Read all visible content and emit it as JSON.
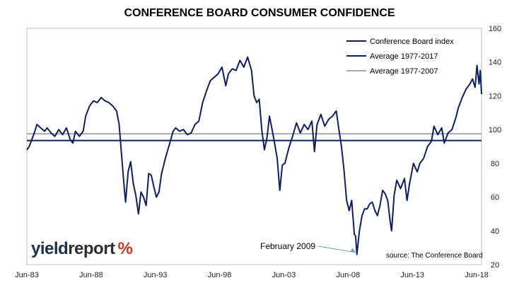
{
  "chart_data": {
    "type": "line",
    "title": "CONFERENCE BOARD CONSUMER CONFIDENCE",
    "xlabel": "",
    "ylabel": "",
    "x_ticks": [
      "Jun-83",
      "Jun-88",
      "Jun-93",
      "Jun-98",
      "Jun-03",
      "Jun-08",
      "Jun-13",
      "Jun-18"
    ],
    "x_range": [
      1983.42,
      2018.8
    ],
    "ylim": [
      20,
      160
    ],
    "y_ticks": [
      20,
      40,
      60,
      80,
      100,
      120,
      140,
      160
    ],
    "grid": false,
    "legend_position": "top-right",
    "series": [
      {
        "name": "Conference Board index",
        "color": "#0d1f5c",
        "points": [
          [
            1983.42,
            88
          ],
          [
            1983.6,
            90
          ],
          [
            1983.8,
            94
          ],
          [
            1984.0,
            98
          ],
          [
            1984.2,
            103
          ],
          [
            1984.5,
            101
          ],
          [
            1984.8,
            99
          ],
          [
            1985.0,
            101
          ],
          [
            1985.3,
            98
          ],
          [
            1985.6,
            96
          ],
          [
            1985.9,
            100
          ],
          [
            1986.2,
            97
          ],
          [
            1986.5,
            101
          ],
          [
            1986.8,
            94
          ],
          [
            1987.0,
            92
          ],
          [
            1987.2,
            99
          ],
          [
            1987.5,
            96
          ],
          [
            1987.8,
            99
          ],
          [
            1988.0,
            108
          ],
          [
            1988.3,
            114
          ],
          [
            1988.6,
            117
          ],
          [
            1988.9,
            116
          ],
          [
            1989.2,
            119
          ],
          [
            1989.5,
            117
          ],
          [
            1989.8,
            116
          ],
          [
            1990.1,
            114
          ],
          [
            1990.4,
            111
          ],
          [
            1990.6,
            103
          ],
          [
            1990.8,
            84
          ],
          [
            1991.0,
            65
          ],
          [
            1991.1,
            57
          ],
          [
            1991.3,
            75
          ],
          [
            1991.5,
            81
          ],
          [
            1991.7,
            68
          ],
          [
            1991.9,
            61
          ],
          [
            1992.1,
            50
          ],
          [
            1992.3,
            63
          ],
          [
            1992.5,
            60
          ],
          [
            1992.7,
            55
          ],
          [
            1992.9,
            74
          ],
          [
            1993.1,
            73
          ],
          [
            1993.3,
            66
          ],
          [
            1993.5,
            60
          ],
          [
            1993.7,
            63
          ],
          [
            1993.9,
            74
          ],
          [
            1994.2,
            83
          ],
          [
            1994.5,
            91
          ],
          [
            1994.8,
            99
          ],
          [
            1995.0,
            101
          ],
          [
            1995.3,
            99
          ],
          [
            1995.6,
            100
          ],
          [
            1995.9,
            97
          ],
          [
            1996.2,
            98
          ],
          [
            1996.5,
            103
          ],
          [
            1996.8,
            105
          ],
          [
            1997.1,
            116
          ],
          [
            1997.4,
            123
          ],
          [
            1997.7,
            129
          ],
          [
            1998.0,
            131
          ],
          [
            1998.3,
            133
          ],
          [
            1998.6,
            137
          ],
          [
            1998.9,
            126
          ],
          [
            1999.1,
            133
          ],
          [
            1999.4,
            136
          ],
          [
            1999.7,
            135
          ],
          [
            2000.0,
            141
          ],
          [
            2000.3,
            137
          ],
          [
            2000.6,
            143
          ],
          [
            2000.9,
            135
          ],
          [
            2001.1,
            120
          ],
          [
            2001.3,
            116
          ],
          [
            2001.5,
            118
          ],
          [
            2001.7,
            100
          ],
          [
            2001.9,
            88
          ],
          [
            2002.1,
            95
          ],
          [
            2002.3,
            108
          ],
          [
            2002.6,
            96
          ],
          [
            2002.9,
            83
          ],
          [
            2003.1,
            64
          ],
          [
            2003.3,
            79
          ],
          [
            2003.5,
            80
          ],
          [
            2003.8,
            89
          ],
          [
            2004.1,
            96
          ],
          [
            2004.4,
            104
          ],
          [
            2004.7,
            98
          ],
          [
            2005.0,
            103
          ],
          [
            2005.3,
            100
          ],
          [
            2005.6,
            105
          ],
          [
            2005.8,
            87
          ],
          [
            2006.0,
            103
          ],
          [
            2006.3,
            109
          ],
          [
            2006.6,
            102
          ],
          [
            2006.9,
            106
          ],
          [
            2007.2,
            108
          ],
          [
            2007.5,
            111
          ],
          [
            2007.7,
            100
          ],
          [
            2007.9,
            90
          ],
          [
            2008.1,
            76
          ],
          [
            2008.3,
            58
          ],
          [
            2008.5,
            52
          ],
          [
            2008.7,
            58
          ],
          [
            2008.9,
            38
          ],
          [
            2009.0,
            37
          ],
          [
            2009.1,
            26
          ],
          [
            2009.3,
            40
          ],
          [
            2009.5,
            49
          ],
          [
            2009.7,
            53
          ],
          [
            2009.9,
            53
          ],
          [
            2010.1,
            56
          ],
          [
            2010.3,
            57
          ],
          [
            2010.5,
            52
          ],
          [
            2010.7,
            49
          ],
          [
            2010.9,
            55
          ],
          [
            2011.1,
            64
          ],
          [
            2011.3,
            62
          ],
          [
            2011.5,
            58
          ],
          [
            2011.7,
            45
          ],
          [
            2011.8,
            40
          ],
          [
            2012.0,
            61
          ],
          [
            2012.2,
            70
          ],
          [
            2012.5,
            65
          ],
          [
            2012.8,
            71
          ],
          [
            2013.0,
            58
          ],
          [
            2013.2,
            68
          ],
          [
            2013.5,
            80
          ],
          [
            2013.8,
            75
          ],
          [
            2014.0,
            80
          ],
          [
            2014.3,
            83
          ],
          [
            2014.6,
            90
          ],
          [
            2014.9,
            93
          ],
          [
            2015.1,
            102
          ],
          [
            2015.4,
            97
          ],
          [
            2015.7,
            101
          ],
          [
            2015.9,
            92
          ],
          [
            2016.2,
            98
          ],
          [
            2016.5,
            100
          ],
          [
            2016.8,
            107
          ],
          [
            2017.0,
            113
          ],
          [
            2017.3,
            119
          ],
          [
            2017.6,
            124
          ],
          [
            2017.9,
            127
          ],
          [
            2018.1,
            130
          ],
          [
            2018.3,
            125
          ],
          [
            2018.45,
            138
          ],
          [
            2018.6,
            127
          ],
          [
            2018.7,
            135
          ],
          [
            2018.8,
            121
          ]
        ]
      },
      {
        "name": "Average 1977-2017",
        "color": "#0d1f5c",
        "value": 93.5
      },
      {
        "name": "Average 1977-2007",
        "color": "#aaaaaa",
        "value": 97.5
      }
    ],
    "annotation": {
      "text": "February 2009",
      "x": 2009.1,
      "y": 26
    },
    "source": "source: The Conference Board",
    "logo_text": "yieldreport %"
  }
}
